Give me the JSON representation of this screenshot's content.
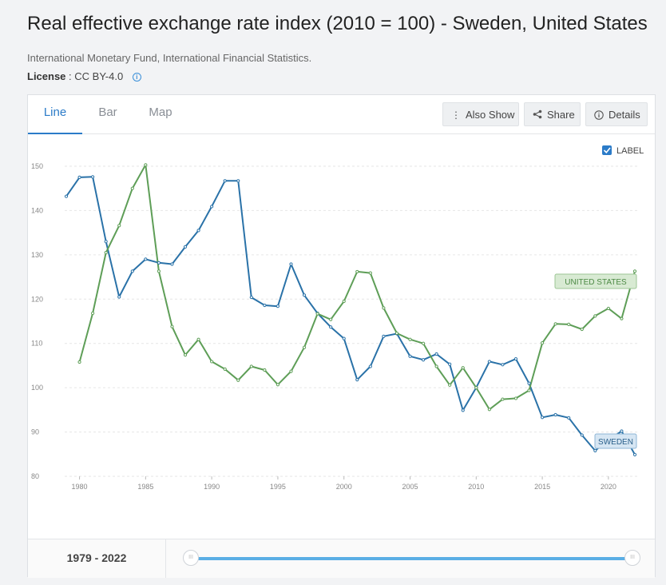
{
  "header": {
    "title": "Real effective exchange rate index (2010 = 100) - Sweden, United States",
    "source": "International Monetary Fund, International Financial Statistics.",
    "license_label": "License",
    "license_value": ": CC BY-4.0"
  },
  "tabs": [
    {
      "label": "Line",
      "active": true
    },
    {
      "label": "Bar",
      "active": false
    },
    {
      "label": "Map",
      "active": false
    }
  ],
  "toolbar": {
    "also_show": "Also Show",
    "share": "Share",
    "details": "Details"
  },
  "label_toggle": {
    "label": "LABEL",
    "checked": true
  },
  "colors": {
    "sweden": "#2a72a8",
    "united_states": "#5e9e57",
    "accent": "#2b7bc8"
  },
  "chart_data": {
    "type": "line",
    "x": [
      1979,
      1980,
      1981,
      1982,
      1983,
      1984,
      1985,
      1986,
      1987,
      1988,
      1989,
      1990,
      1991,
      1992,
      1993,
      1994,
      1995,
      1996,
      1997,
      1998,
      1999,
      2000,
      2001,
      2002,
      2003,
      2004,
      2005,
      2006,
      2007,
      2008,
      2009,
      2010,
      2011,
      2012,
      2013,
      2014,
      2015,
      2016,
      2017,
      2018,
      2019,
      2020,
      2021,
      2022
    ],
    "series": [
      {
        "name": "SWEDEN",
        "values": [
          143.2,
          147.5,
          147.6,
          133.0,
          120.5,
          126.3,
          129.0,
          128.2,
          127.9,
          131.8,
          135.5,
          140.9,
          146.7,
          146.7,
          120.4,
          118.6,
          118.4,
          127.9,
          120.9,
          116.8,
          113.7,
          111.1,
          101.8,
          104.8,
          111.6,
          112.2,
          107.1,
          106.3,
          107.6,
          105.3,
          94.9,
          100.0,
          105.9,
          105.2,
          106.5,
          101.0,
          93.3,
          93.9,
          93.2,
          89.3,
          85.8,
          88.2,
          90.2,
          84.9
        ]
      },
      {
        "name": "UNITED STATES",
        "values": [
          null,
          105.8,
          116.8,
          130.5,
          136.6,
          145.0,
          150.3,
          126.3,
          113.8,
          107.4,
          110.9,
          105.9,
          104.2,
          101.7,
          104.8,
          104.0,
          100.7,
          103.7,
          109.1,
          116.7,
          115.4,
          119.5,
          126.2,
          125.9,
          118.0,
          112.3,
          110.9,
          110.0,
          104.8,
          100.6,
          104.5,
          100.0,
          95.1,
          97.4,
          97.6,
          99.4,
          110.1,
          114.4,
          114.3,
          113.2,
          116.2,
          117.9,
          115.6,
          126.3
        ]
      }
    ],
    "ylim": [
      80,
      150
    ],
    "y_ticks": [
      80,
      90,
      100,
      110,
      120,
      130,
      140,
      150
    ],
    "x_ticks": [
      1980,
      1985,
      1990,
      1995,
      2000,
      2005,
      2010,
      2015,
      2020
    ],
    "grid": true,
    "legend": "inline-end-labels"
  },
  "footer": {
    "range_label": "1979 - 2022",
    "handle_glyph": "III"
  }
}
